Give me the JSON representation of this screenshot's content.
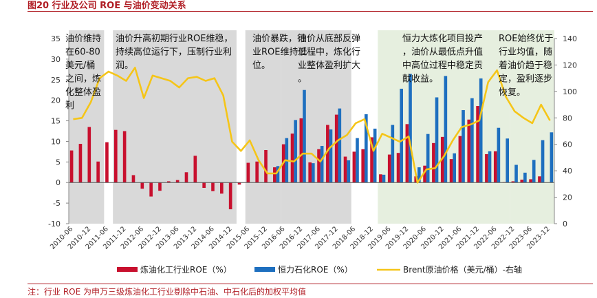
{
  "figure": {
    "title": "图20 行业及公司 ROE 与油价变动关系",
    "footnote": "注：行业 ROE 为申万三级炼油化工行业剔除中石油、中石化后的加权平均值"
  },
  "colors": {
    "red": "#c8102e",
    "blue": "#1e6fbf",
    "gold": "#f5c518",
    "gray": "#d9d9d9",
    "green": "#e6efdf"
  },
  "chart_data": {
    "type": "bar",
    "title": "",
    "x": [
      "2010-06",
      "2010-09",
      "2010-12",
      "2011-03",
      "2011-06",
      "2011-09",
      "2011-12",
      "2012-03",
      "2012-06",
      "2012-09",
      "2012-12",
      "2013-03",
      "2013-06",
      "2013-09",
      "2013-12",
      "2014-03",
      "2014-06",
      "2014-09",
      "2014-12",
      "2015-03",
      "2015-06",
      "2015-09",
      "2015-12",
      "2016-03",
      "2016-06",
      "2016-09",
      "2016-12",
      "2017-03",
      "2017-06",
      "2017-09",
      "2017-12",
      "2018-03",
      "2018-06",
      "2018-09",
      "2018-12",
      "2019-03",
      "2019-06",
      "2019-09",
      "2019-12",
      "2020-03",
      "2020-06",
      "2020-09",
      "2020-12",
      "2021-03",
      "2021-06",
      "2021-09",
      "2021-12",
      "2022-03",
      "2022-06",
      "2022-09",
      "2022-12",
      "2023-03",
      "2023-06",
      "2023-09",
      "2023-12"
    ],
    "xtick_labels": [
      "2010-06",
      "2010-12",
      "2011-06",
      "2011-12",
      "2012-06",
      "2012-12",
      "2013-06",
      "2013-12",
      "2014-06",
      "2014-12",
      "2015-06",
      "2015-12",
      "2016-06",
      "2016-12",
      "2017-06",
      "2017-12",
      "2018-06",
      "2018-12",
      "2019-06",
      "2019-12",
      "2020-06",
      "2020-12",
      "2021-06",
      "2021-12",
      "2022-06",
      "2022-12",
      "2023-06",
      "2023-12"
    ],
    "y_left": {
      "min": -10,
      "max": 35,
      "ticks": [
        -10,
        -5,
        0,
        5,
        10,
        15,
        20,
        25,
        30,
        35
      ]
    },
    "y_right": {
      "min": 0,
      "max": 140,
      "ticks": [
        0,
        20,
        40,
        60,
        80,
        100,
        120,
        140
      ]
    },
    "series": [
      {
        "name": "炼油化工行业ROE（%）",
        "axis": "left",
        "type": "bar",
        "color": "#c8102e",
        "values": [
          7.8,
          9.4,
          13.5,
          5.1,
          9.8,
          12.8,
          12.5,
          1.8,
          -1.5,
          -3.4,
          -2.0,
          0.3,
          0.6,
          2.5,
          6.5,
          -1.3,
          -2.1,
          -2.7,
          -6.5,
          -0.5,
          4.8,
          5.1,
          7.9,
          3.7,
          9.3,
          11.9,
          15.6,
          4.9,
          8.1,
          14.0,
          16.5,
          6.3,
          7.5,
          8.1,
          11.0,
          2.0,
          6.8,
          7.2,
          14.2,
          1.5,
          4.1,
          9.6,
          11.1,
          5.7,
          11.3,
          15.3,
          18.6,
          6.9,
          7.6,
          0.1,
          0.3,
          0.7,
          0.8,
          1.5,
          null
        ]
      },
      {
        "name": "恒力石化ROE（%）",
        "axis": "left",
        "type": "bar",
        "color": "#1e6fbf",
        "values": [
          null,
          null,
          null,
          null,
          null,
          null,
          null,
          null,
          null,
          null,
          null,
          null,
          null,
          null,
          null,
          null,
          null,
          null,
          null,
          null,
          null,
          null,
          null,
          4.0,
          10.8,
          15.2,
          22.5,
          4.7,
          8.9,
          12.9,
          18.0,
          5.4,
          10.8,
          16.6,
          13.1,
          1.9,
          14.0,
          22.8,
          26.4,
          3.7,
          11.8,
          20.7,
          25.9,
          7.1,
          17.6,
          20.5,
          25.3,
          7.6,
          13.3,
          10.7,
          4.3,
          2.4,
          5.5,
          10.3,
          12.2
        ]
      },
      {
        "name": "Brent原油价格（美元/桶）-右轴",
        "axis": "right",
        "type": "line",
        "color": "#f5c518",
        "values": [
          79,
          80,
          92,
          110,
          115,
          112,
          108,
          118,
          95,
          112,
          110,
          108,
          103,
          110,
          111,
          108,
          110,
          97,
          62,
          55,
          63,
          48,
          38,
          38,
          48,
          47,
          53,
          53,
          47,
          57,
          63,
          67,
          76,
          79,
          55,
          68,
          65,
          62,
          66,
          31,
          41,
          42,
          51,
          63,
          73,
          75,
          78,
          107,
          116,
          96,
          85,
          80,
          76,
          90,
          78
        ]
      }
    ],
    "annotations": [
      "油价维持在60-80美元/桶之间，炼化整体盈利",
      "油价升高初期行业ROE维稳，持续高位运行下，压制行业利润。",
      "油价暴跌，行业ROE维持低位。",
      "油价从底部反弹过程中，炼化行业整体盈利扩大。",
      "恒力大炼化项目投产，油价从最低点升值中高位过程中稳定贡献收益。",
      "ROE始终优于行业均值，随着油价趋于稳定，盈利逐步恢复。"
    ],
    "legend_position": "bottom"
  }
}
